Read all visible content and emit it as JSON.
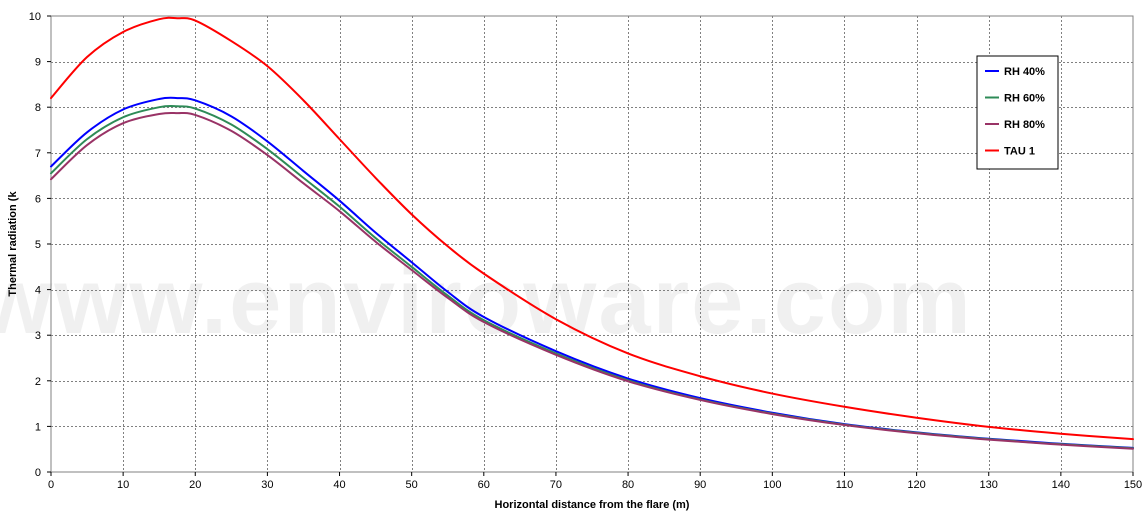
{
  "chart_data": {
    "type": "line",
    "title": "",
    "xlabel": "Horizontal distance from the flare (m)",
    "ylabel": "Thermal radiation (k",
    "xlim": [
      0,
      150
    ],
    "ylim": [
      0,
      10
    ],
    "x_ticks": [
      0,
      10,
      20,
      30,
      40,
      50,
      60,
      70,
      80,
      90,
      100,
      110,
      120,
      130,
      140,
      150
    ],
    "y_ticks": [
      0,
      1,
      2,
      3,
      4,
      5,
      6,
      7,
      8,
      9,
      10
    ],
    "grid": true,
    "legend_position": "top-right",
    "watermark": "www.enviroware.com",
    "x": [
      0,
      5,
      10,
      15,
      17.5,
      20,
      25,
      30,
      35,
      40,
      45,
      50,
      55,
      60,
      70,
      80,
      90,
      100,
      110,
      120,
      130,
      140,
      150
    ],
    "series": [
      {
        "name": "RH 40%",
        "color": "#0000ff",
        "values": [
          6.7,
          7.45,
          7.95,
          8.18,
          8.2,
          8.15,
          7.8,
          7.25,
          6.6,
          5.95,
          5.25,
          4.6,
          3.95,
          3.4,
          2.65,
          2.05,
          1.62,
          1.3,
          1.05,
          0.87,
          0.73,
          0.62,
          0.53
        ]
      },
      {
        "name": "RH 60%",
        "color": "#2e8b57",
        "values": [
          6.55,
          7.3,
          7.78,
          8.0,
          8.02,
          7.97,
          7.62,
          7.08,
          6.45,
          5.82,
          5.13,
          4.5,
          3.87,
          3.33,
          2.6,
          2.01,
          1.59,
          1.28,
          1.04,
          0.86,
          0.72,
          0.61,
          0.52
        ]
      },
      {
        "name": "RH 80%",
        "color": "#993366",
        "values": [
          6.42,
          7.17,
          7.65,
          7.85,
          7.87,
          7.83,
          7.48,
          6.95,
          6.33,
          5.72,
          5.05,
          4.43,
          3.82,
          3.29,
          2.57,
          1.99,
          1.58,
          1.27,
          1.03,
          0.85,
          0.71,
          0.6,
          0.51
        ]
      },
      {
        "name": "TAU 1",
        "color": "#ff0000",
        "values": [
          8.2,
          9.1,
          9.65,
          9.93,
          9.95,
          9.9,
          9.45,
          8.9,
          8.15,
          7.3,
          6.45,
          5.65,
          4.95,
          4.35,
          3.35,
          2.6,
          2.1,
          1.72,
          1.43,
          1.19,
          0.99,
          0.84,
          0.72
        ]
      }
    ]
  }
}
